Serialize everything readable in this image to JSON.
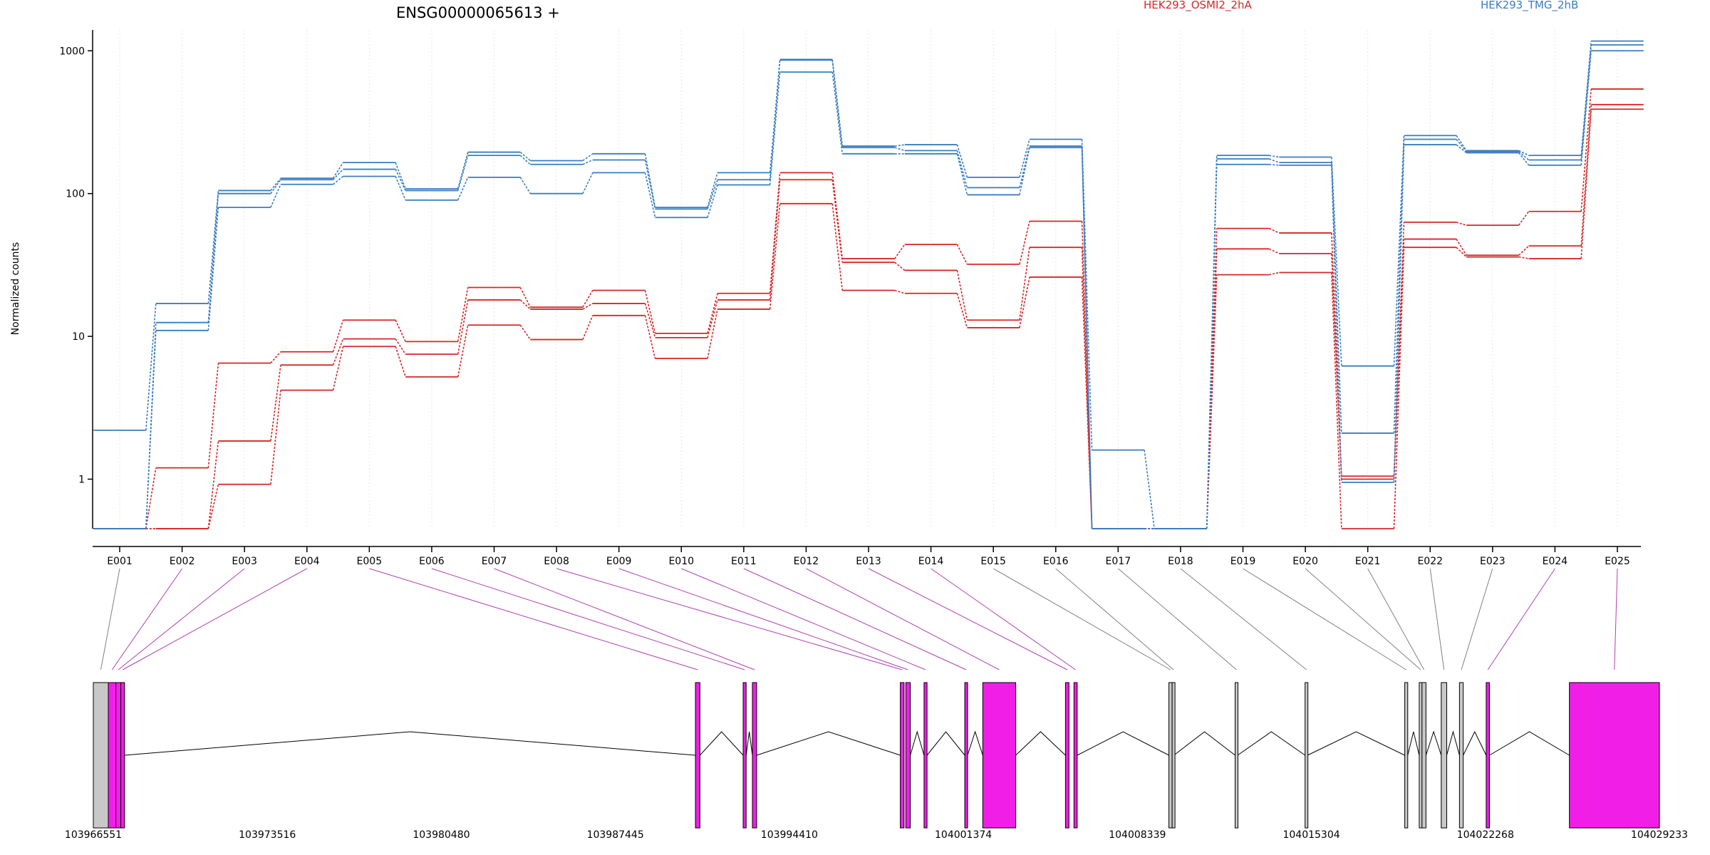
{
  "header": {
    "title": "ENSG00000065613 +",
    "legend": [
      {
        "label": "HEK293_OSMI2_2hA",
        "color": "#d62728"
      },
      {
        "label": "HEK293_TMG_2hB",
        "color": "#3a7dbf"
      }
    ]
  },
  "colors": {
    "osmi2": "#d62728",
    "tmg": "#3a7dbf",
    "exon_tested": "#f01ee6",
    "exon_untested": "#c8c8c8",
    "link_tested": "#b040b0",
    "link_untested": "#808080",
    "grid": "#e6e6e6"
  },
  "chart_data": [
    {
      "type": "line",
      "description": "Normalized counts per exon bin (log scale), step plot",
      "ylabel": "Normalized counts",
      "yscale": "log",
      "ylim": [
        0.45,
        1400
      ],
      "yticks": [
        1,
        10,
        100,
        1000
      ],
      "ytick_labels": [
        "1",
        "10",
        "100",
        "1000"
      ],
      "categories": [
        "E001",
        "E002",
        "E003",
        "E004",
        "E005",
        "E006",
        "E007",
        "E008",
        "E009",
        "E010",
        "E011",
        "E012",
        "E013",
        "E014",
        "E015",
        "E016",
        "E017",
        "E018",
        "E019",
        "E020",
        "E021",
        "E022",
        "E023",
        "E024",
        "E025"
      ],
      "series": [
        {
          "name": "HEK293_OSMI2_2hA",
          "group": "osmi2",
          "values": [
            0.45,
            1.2,
            6.5,
            7.8,
            13,
            9.2,
            22,
            16,
            21,
            10.5,
            20,
            140,
            35,
            44,
            32,
            64,
            0.45,
            0.45,
            57,
            53,
            1.05,
            63,
            60,
            75,
            540
          ]
        },
        {
          "name": "HEK293_OSMI2_2hA",
          "group": "osmi2",
          "values": [
            0.45,
            0.45,
            1.85,
            6.3,
            9.6,
            7.5,
            18,
            15.5,
            17,
            9.8,
            18,
            125,
            33,
            29,
            13,
            42,
            0.45,
            0.45,
            41,
            38,
            1.0,
            48,
            37,
            43,
            420
          ]
        },
        {
          "name": "HEK293_OSMI2_2hA",
          "group": "osmi2",
          "values": [
            0.45,
            0.45,
            0.92,
            4.2,
            8.5,
            5.2,
            12,
            9.5,
            14,
            7,
            15.5,
            85,
            21,
            20,
            11.5,
            26,
            0.45,
            0.45,
            27,
            28,
            0.45,
            42,
            36,
            35,
            390
          ]
        },
        {
          "name": "HEK293_TMG_2hB",
          "group": "tmg",
          "values": [
            2.2,
            17,
            105,
            128,
            165,
            108,
            195,
            170,
            190,
            80,
            140,
            870,
            215,
            220,
            130,
            240,
            1.6,
            0.45,
            185,
            180,
            6.2,
            255,
            200,
            185,
            1170
          ]
        },
        {
          "name": "HEK293_TMG_2hB",
          "group": "tmg",
          "values": [
            0.45,
            12.5,
            100,
            125,
            148,
            105,
            185,
            160,
            172,
            78,
            125,
            860,
            210,
            200,
            110,
            215,
            0.45,
            0.45,
            175,
            165,
            2.1,
            240,
            197,
            172,
            1100
          ]
        },
        {
          "name": "HEK293_TMG_2hB",
          "group": "tmg",
          "values": [
            0.45,
            11,
            80,
            116,
            132,
            90,
            130,
            100,
            140,
            68,
            115,
            710,
            190,
            190,
            98,
            210,
            0.45,
            0.45,
            160,
            158,
            0.95,
            220,
            193,
            158,
            1000
          ]
        }
      ]
    },
    {
      "type": "bar",
      "description": "Gene model: exon bins along genomic coordinates",
      "coordinate_range": [
        103966551,
        104029233
      ],
      "xtick_labels": [
        "103966551",
        "103973516",
        "103980480",
        "103987445",
        "103994410",
        "104001374",
        "104008339",
        "104015304",
        "104022268",
        "104029233"
      ],
      "exons": [
        {
          "start": 103966551,
          "end": 103967150,
          "tested": false,
          "bin": 1
        },
        {
          "start": 103967150,
          "end": 103967450,
          "tested": true,
          "bin": 2
        },
        {
          "start": 103967450,
          "end": 103967650,
          "tested": true,
          "bin": 3
        },
        {
          "start": 103967650,
          "end": 103967800,
          "tested": true,
          "bin": 4
        },
        {
          "start": 103990650,
          "end": 103990830,
          "tested": true,
          "bin": 5
        },
        {
          "start": 103992560,
          "end": 103992680,
          "tested": true,
          "bin": 6
        },
        {
          "start": 103992930,
          "end": 103993100,
          "tested": true,
          "bin": 7
        },
        {
          "start": 103998850,
          "end": 103999000,
          "tested": true,
          "bin": 8
        },
        {
          "start": 103999070,
          "end": 103999250,
          "tested": true,
          "bin": 9
        },
        {
          "start": 103999800,
          "end": 103999920,
          "tested": true,
          "bin": 10
        },
        {
          "start": 104001430,
          "end": 104001540,
          "tested": true,
          "bin": 11
        },
        {
          "start": 104002150,
          "end": 104003470,
          "tested": true,
          "bin": 12
        },
        {
          "start": 104005460,
          "end": 104005600,
          "tested": true,
          "bin": 13
        },
        {
          "start": 104005800,
          "end": 104005930,
          "tested": true,
          "bin": 14
        },
        {
          "start": 104009600,
          "end": 104009730,
          "tested": false,
          "bin": 15
        },
        {
          "start": 104009730,
          "end": 104009800,
          "tested": false,
          "bin": 16
        },
        {
          "start": 104012250,
          "end": 104012350,
          "tested": false,
          "bin": 17
        },
        {
          "start": 104015050,
          "end": 104015150,
          "tested": false,
          "bin": 18
        },
        {
          "start": 104019040,
          "end": 104019160,
          "tested": false,
          "bin": 19
        },
        {
          "start": 104019620,
          "end": 104019730,
          "tested": false,
          "bin": 20
        },
        {
          "start": 104019730,
          "end": 104019890,
          "tested": false,
          "bin": 21
        },
        {
          "start": 104020500,
          "end": 104020720,
          "tested": false,
          "bin": 22
        },
        {
          "start": 104021230,
          "end": 104021380,
          "tested": false,
          "bin": 23
        },
        {
          "start": 104022300,
          "end": 104022430,
          "tested": true,
          "bin": 24
        },
        {
          "start": 104025630,
          "end": 104029233,
          "tested": true,
          "bin": 25
        }
      ],
      "introns": [
        [
          103967800,
          103990650
        ],
        [
          103990830,
          103992560
        ],
        [
          103992680,
          103992930
        ],
        [
          103993100,
          103998850
        ],
        [
          103999250,
          103999800
        ],
        [
          103999920,
          104001430
        ],
        [
          104001540,
          104002150
        ],
        [
          104003470,
          104005460
        ],
        [
          104005930,
          104009600
        ],
        [
          104009800,
          104012250
        ],
        [
          104012350,
          104015050
        ],
        [
          104015150,
          104019040
        ],
        [
          104019160,
          104019620
        ],
        [
          104019890,
          104020500
        ],
        [
          104020720,
          104021230
        ],
        [
          104021380,
          104022300
        ],
        [
          104022430,
          104025630
        ]
      ]
    }
  ]
}
